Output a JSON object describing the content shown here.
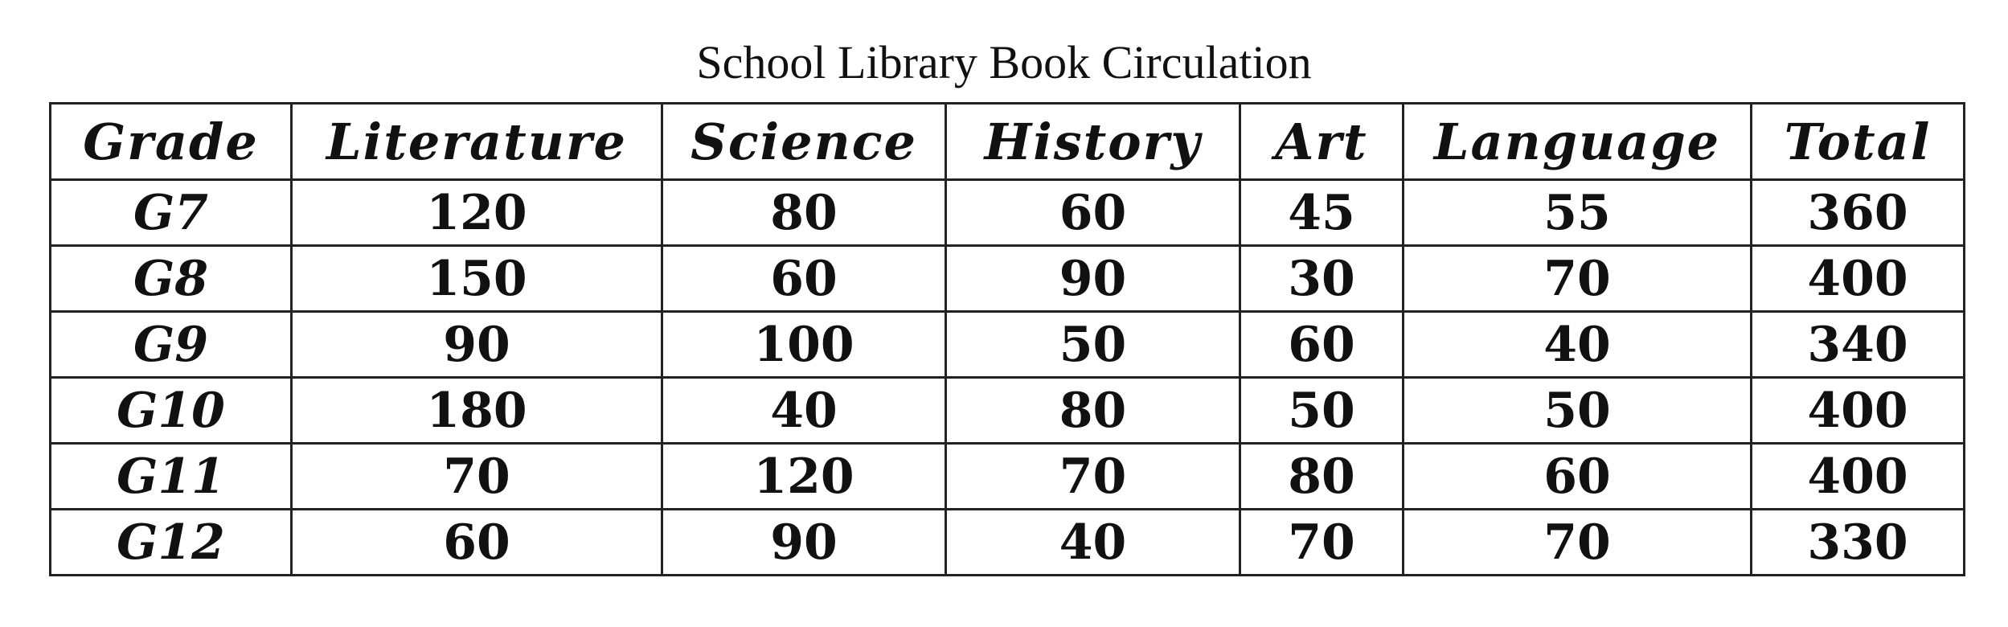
{
  "chart_data": {
    "type": "table",
    "title": "School Library Book Circulation",
    "columns": [
      "Grade",
      "Literature",
      "Science",
      "History",
      "Art",
      "Language",
      "Total"
    ],
    "rows": [
      [
        "G7",
        "120",
        "80",
        "60",
        "45",
        "55",
        "360"
      ],
      [
        "G8",
        "150",
        "60",
        "90",
        "30",
        "70",
        "400"
      ],
      [
        "G9",
        "90",
        "100",
        "50",
        "60",
        "40",
        "340"
      ],
      [
        "G10",
        "180",
        "40",
        "80",
        "50",
        "50",
        "400"
      ],
      [
        "G11",
        "70",
        "120",
        "70",
        "80",
        "60",
        "400"
      ],
      [
        "G12",
        "60",
        "90",
        "40",
        "70",
        "70",
        "330"
      ]
    ]
  }
}
